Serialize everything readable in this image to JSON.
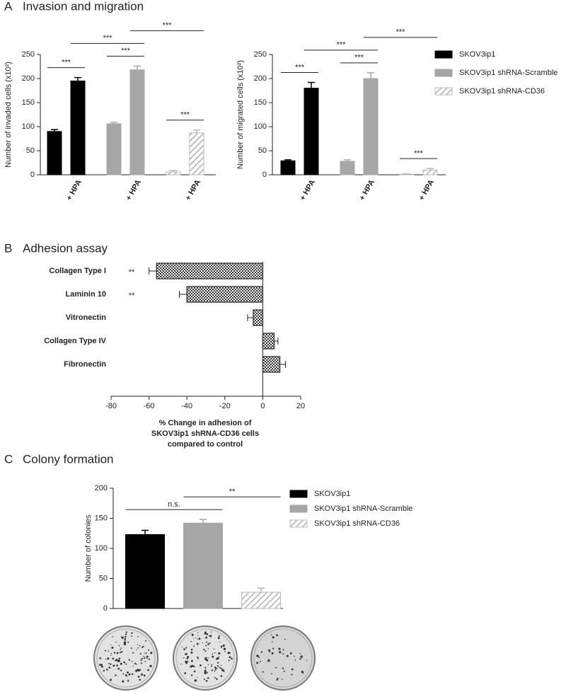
{
  "panels": [
    {
      "letter": "A",
      "title": "Invasion and migration"
    },
    {
      "letter": "B",
      "title": "Adhesion assay"
    },
    {
      "letter": "C",
      "title": "Colony formation"
    }
  ],
  "chart_data": [
    {
      "type": "bar",
      "ylabel": "Number of invaded cells (x10²)",
      "categories": [
        null,
        "+ HPA",
        null,
        "+ HPA",
        null,
        "+ HPA"
      ],
      "ylim": [
        0,
        250
      ],
      "yticks": [
        0,
        50,
        100,
        150,
        200,
        250
      ],
      "series": [
        {
          "color": "#000000",
          "values": [
            90,
            195,
            null,
            null,
            null,
            null
          ],
          "errors": [
            4,
            7,
            null,
            null,
            null,
            null
          ]
        },
        {
          "color": "#a6a6a6",
          "values": [
            null,
            null,
            106,
            218,
            null,
            null
          ],
          "errors": [
            null,
            null,
            3,
            8,
            null,
            null
          ]
        },
        {
          "color": "#b8b8b8",
          "hatch": true,
          "values": [
            null,
            null,
            null,
            null,
            6,
            87
          ],
          "errors": [
            null,
            null,
            null,
            null,
            3,
            6
          ]
        }
      ],
      "brackets": [
        {
          "label": "***",
          "from": 0,
          "to": 1
        },
        {
          "label": "***",
          "from": 2,
          "to": 3
        },
        {
          "label": "***",
          "from": 4,
          "to": 5
        },
        {
          "label": "***",
          "from": 1,
          "to": 3
        },
        {
          "label": "***",
          "from": 3,
          "to": 5
        }
      ]
    },
    {
      "type": "bar",
      "ylabel": "Number of migrated cells (x10²)",
      "categories": [
        null,
        "+ HPA",
        null,
        "+ HPA",
        null,
        "+ HPA"
      ],
      "ylim": [
        0,
        250
      ],
      "yticks": [
        0,
        50,
        100,
        150,
        200,
        250
      ],
      "legend": "right",
      "series": [
        {
          "name": "SKOV3ip1",
          "color": "#000000",
          "values": [
            29,
            180,
            null,
            null,
            null,
            null
          ],
          "errors": [
            2,
            12,
            null,
            null,
            null,
            null
          ]
        },
        {
          "name": "SKOV3ip1 shRNA-Scramble",
          "color": "#a6a6a6",
          "values": [
            null,
            null,
            28,
            200,
            null,
            null
          ],
          "errors": [
            null,
            null,
            3,
            12,
            null,
            null
          ]
        },
        {
          "name": "SKOV3ip1 shRNA-CD36",
          "color": "#b8b8b8",
          "hatch": true,
          "values": [
            null,
            null,
            null,
            null,
            1,
            10
          ],
          "errors": [
            null,
            null,
            null,
            null,
            1,
            3
          ]
        }
      ],
      "brackets": [
        {
          "label": "***",
          "from": 0,
          "to": 1
        },
        {
          "label": "***",
          "from": 2,
          "to": 3
        },
        {
          "label": "***",
          "from": 4,
          "to": 5
        },
        {
          "label": "***",
          "from": 1,
          "to": 3
        },
        {
          "label": "***",
          "from": 3,
          "to": 5
        }
      ]
    },
    {
      "type": "barh",
      "color": "#444444",
      "categories": [
        "Collagen Type I",
        "Laminin 10",
        "Vitronectin",
        "Collagen Type IV",
        "Fibronectin"
      ],
      "values": [
        -56,
        -40,
        -5,
        6,
        9
      ],
      "errors": [
        4,
        4,
        3,
        2,
        3
      ],
      "significance": [
        "**",
        "**",
        null,
        null,
        null
      ],
      "xlim": [
        -80,
        20
      ],
      "xticks": [
        -80,
        -60,
        -40,
        -20,
        0,
        20
      ],
      "xlabel": [
        "% Change in adhesion of",
        "SKOV3ip1 shRNA-CD36 cells",
        "compared to control"
      ]
    },
    {
      "type": "bar",
      "ylabel": "Number of colonies",
      "ylim": [
        0,
        200
      ],
      "yticks": [
        0,
        50,
        100,
        150,
        200
      ],
      "legend": "right",
      "series": [
        {
          "name": "SKOV3ip1",
          "color": "#000000",
          "values": [
            123,
            null,
            null
          ],
          "errors": [
            7,
            null,
            null
          ]
        },
        {
          "name": "SKOV3ip1 shRNA-Scramble",
          "color": "#a6a6a6",
          "values": [
            null,
            142,
            null
          ],
          "errors": [
            null,
            6,
            null
          ]
        },
        {
          "name": "SKOV3ip1 shRNA-CD36",
          "color": "#b8b8b8",
          "hatch": true,
          "values": [
            null,
            null,
            27
          ],
          "errors": [
            null,
            null,
            7
          ]
        }
      ],
      "brackets": [
        {
          "label": "n.s.",
          "from": 0,
          "to": 1
        },
        {
          "label": "**",
          "from": 1,
          "to": 2
        }
      ]
    }
  ]
}
